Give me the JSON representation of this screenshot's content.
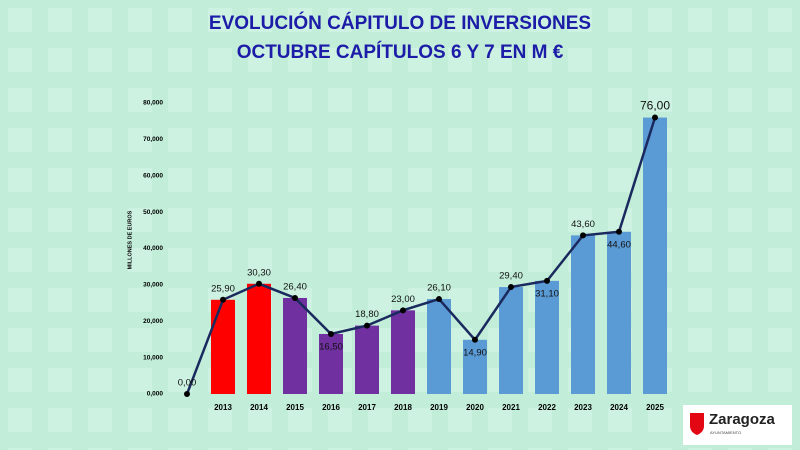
{
  "chart_data": {
    "type": "combo",
    "title": "EVOLUCIÓN CÁPITULO DE INVERSIONES",
    "subtitle": "OCTUBRE CAPÍTULOS 6 Y 7 EN M €",
    "y_label": "MILLONES DE EUROS",
    "categories": [
      null,
      "2013",
      "2014",
      "2015",
      "2016",
      "2017",
      "2018",
      "2019",
      "2020",
      "2021",
      "2022",
      "2023",
      "2024",
      "2025"
    ],
    "values": [
      0,
      25.9,
      30.3,
      26.4,
      16.5,
      18.8,
      23.0,
      26.1,
      14.9,
      29.4,
      31.1,
      43.6,
      44.6,
      76.0
    ],
    "value_labels": [
      "0,00",
      "25,90",
      "30,30",
      "26,40",
      "16,50",
      "18,80",
      "23,00",
      "26,10",
      "14,90",
      "29,40",
      "31,10",
      "43,60",
      "44,60",
      "76,00"
    ],
    "bar_colors": [
      "#5b9bd5",
      "#ff0000",
      "#ff0000",
      "#7030a0",
      "#7030a0",
      "#7030a0",
      "#7030a0",
      "#5b9bd5",
      "#5b9bd5",
      "#5b9bd5",
      "#5b9bd5",
      "#5b9bd5",
      "#5b9bd5",
      "#5b9bd5"
    ],
    "line_color": "#1b2a5e",
    "ylim": [
      0,
      80
    ],
    "yticks": [
      {
        "value": 0,
        "label": "0,000"
      },
      {
        "value": 10,
        "label": "10,000"
      },
      {
        "value": 20,
        "label": "20,000"
      },
      {
        "value": 30,
        "label": "30,000"
      },
      {
        "value": 40,
        "label": "40,000"
      },
      {
        "value": 50,
        "label": "50,000"
      },
      {
        "value": 60,
        "label": "60,000"
      },
      {
        "value": 70,
        "label": "70,000"
      },
      {
        "value": 80,
        "label": "80,000"
      }
    ],
    "grid": false
  },
  "logo": {
    "name": "Zaragoza",
    "subtitle": "AYUNTAMIENTO"
  }
}
